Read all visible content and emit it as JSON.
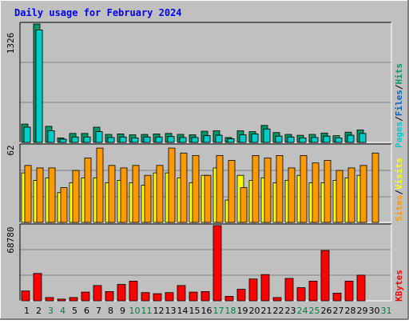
{
  "title": "Daily usage for February 2024",
  "colors": {
    "hits": "#009966",
    "files": "#0066cc",
    "pages": "#00cccc",
    "sites": "#ff9900",
    "visits": "#ffff00",
    "kbytes": "#ff0000",
    "title_text": "#0000ff",
    "weekend_day": "#008040",
    "background": "#c0c0c0"
  },
  "chart_data": [
    {
      "type": "bar",
      "title": "Daily usage for February 2024",
      "categories": [
        "1",
        "2",
        "3",
        "4",
        "5",
        "6",
        "7",
        "8",
        "9",
        "10",
        "11",
        "12",
        "13",
        "14",
        "15",
        "16",
        "17",
        "18",
        "19",
        "20",
        "21",
        "22",
        "23",
        "24",
        "25",
        "26",
        "27",
        "28",
        "29",
        "30",
        "31"
      ],
      "weekend_days": [
        "3",
        "4",
        "10",
        "11",
        "17",
        "18",
        "24",
        "25",
        "31"
      ],
      "ymax_label": "1326",
      "ylim": [
        0,
        1326
      ],
      "legend": [
        "Pages",
        "/",
        "Files",
        "/",
        "Hits"
      ],
      "series": [
        {
          "name": "Hits",
          "values": [
            205,
            1326,
            180,
            50,
            100,
            100,
            170,
            90,
            95,
            85,
            90,
            95,
            100,
            90,
            85,
            125,
            130,
            55,
            130,
            120,
            190,
            110,
            90,
            80,
            90,
            105,
            75,
            115,
            140,
            0,
            0
          ]
        },
        {
          "name": "Files",
          "values": [
            170,
            1260,
            130,
            35,
            60,
            60,
            120,
            55,
            60,
            50,
            60,
            60,
            65,
            55,
            55,
            75,
            80,
            40,
            85,
            95,
            150,
            70,
            60,
            50,
            55,
            70,
            50,
            80,
            100,
            0,
            0
          ]
        },
        {
          "name": "Pages",
          "values": [
            170,
            1260,
            130,
            35,
            60,
            60,
            120,
            55,
            60,
            50,
            60,
            60,
            65,
            55,
            55,
            75,
            80,
            40,
            85,
            95,
            150,
            70,
            60,
            50,
            55,
            70,
            50,
            80,
            100,
            0,
            0
          ]
        }
      ]
    },
    {
      "type": "bar",
      "ymax_label": "62",
      "ylim": [
        0,
        62
      ],
      "legend": [
        "Sites",
        "/",
        "Visits"
      ],
      "series": [
        {
          "name": "Visits",
          "values": [
            40,
            34,
            36,
            24,
            32,
            36,
            36,
            32,
            34,
            32,
            30,
            40,
            40,
            36,
            32,
            38,
            44,
            18,
            38,
            34,
            36,
            32,
            34,
            38,
            32,
            32,
            34,
            36,
            38,
            0,
            0
          ]
        },
        {
          "name": "Sites",
          "values": [
            46,
            44,
            44,
            28,
            42,
            52,
            60,
            46,
            44,
            46,
            38,
            46,
            60,
            56,
            54,
            38,
            54,
            50,
            28,
            54,
            52,
            54,
            44,
            54,
            48,
            50,
            42,
            44,
            46,
            56,
            0
          ]
        }
      ]
    },
    {
      "type": "bar",
      "ymax_label": "68780",
      "ylim": [
        0,
        68780
      ],
      "legend": [
        "KBytes"
      ],
      "series": [
        {
          "name": "KBytes",
          "values": [
            9000,
            25000,
            3000,
            1500,
            3000,
            8000,
            14000,
            8500,
            15000,
            18000,
            7500,
            6500,
            7500,
            14000,
            8000,
            8500,
            68780,
            4000,
            10500,
            20000,
            24000,
            3000,
            20500,
            12000,
            18000,
            46000,
            7000,
            18000,
            23500,
            0,
            0
          ]
        }
      ]
    }
  ]
}
